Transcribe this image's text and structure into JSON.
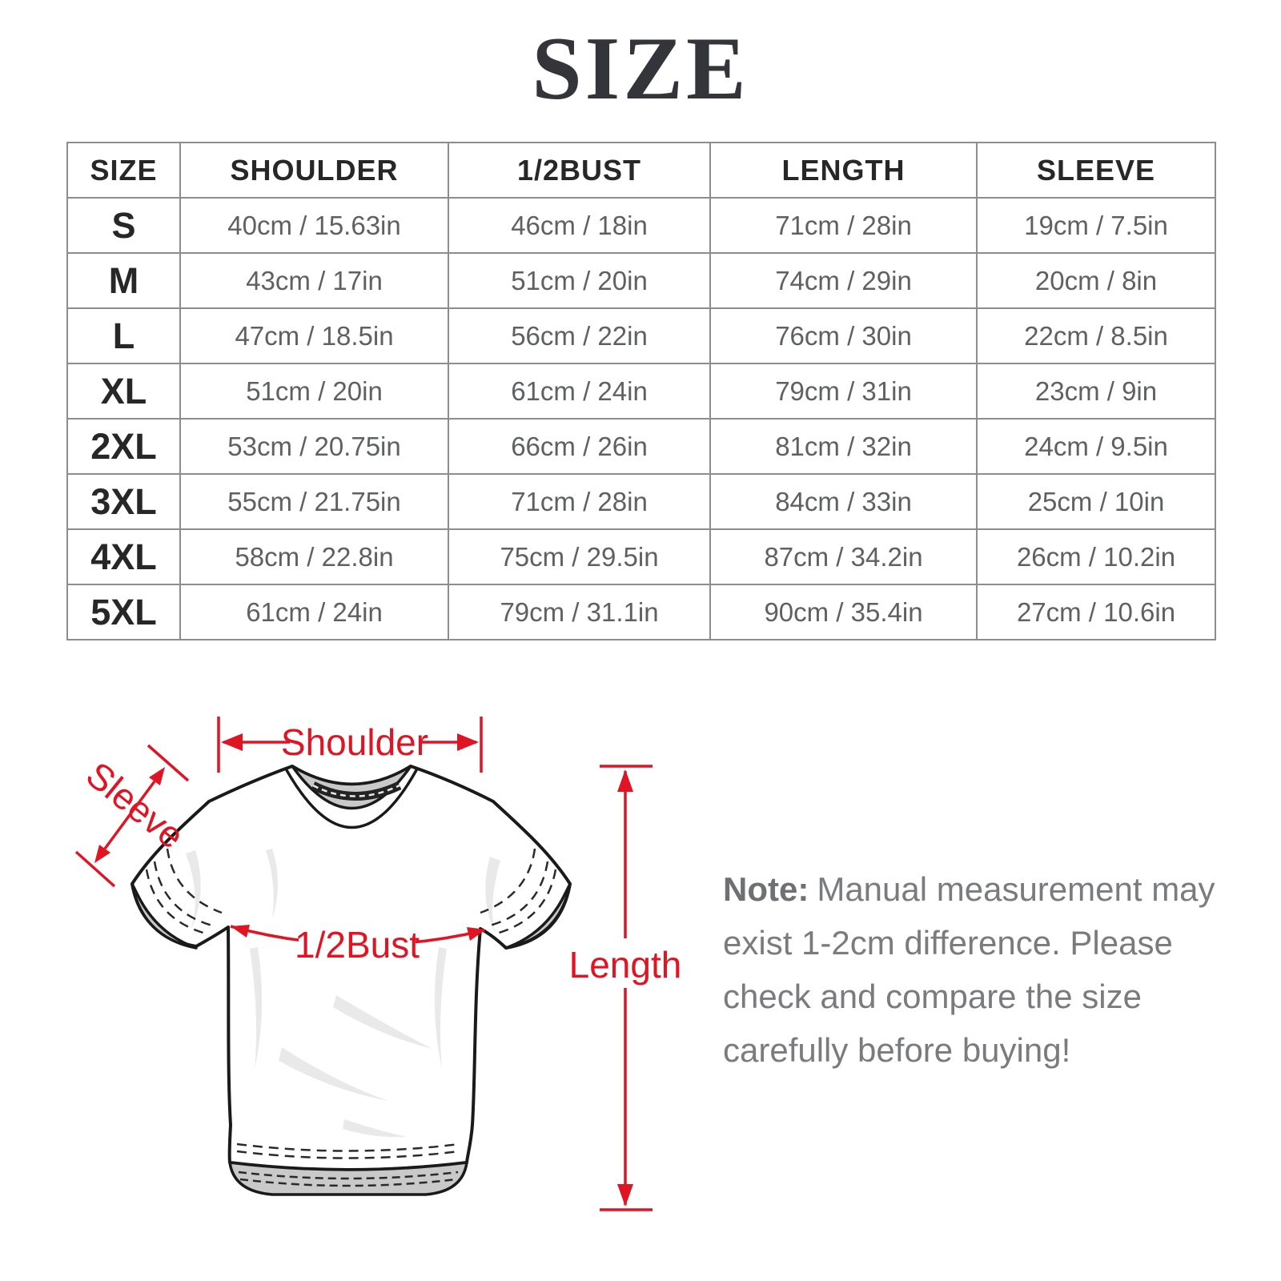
{
  "title": "SIZE",
  "table": {
    "columns": [
      "SIZE",
      "SHOULDER",
      "1/2BUST",
      "LENGTH",
      "SLEEVE"
    ],
    "rows": [
      {
        "size": "S",
        "shoulder": "40cm / 15.63in",
        "bust": "46cm / 18in",
        "length": "71cm / 28in",
        "sleeve": "19cm / 7.5in"
      },
      {
        "size": "M",
        "shoulder": "43cm / 17in",
        "bust": "51cm / 20in",
        "length": "74cm / 29in",
        "sleeve": "20cm / 8in"
      },
      {
        "size": "L",
        "shoulder": "47cm / 18.5in",
        "bust": "56cm / 22in",
        "length": "76cm / 30in",
        "sleeve": "22cm / 8.5in"
      },
      {
        "size": "XL",
        "shoulder": "51cm / 20in",
        "bust": "61cm / 24in",
        "length": "79cm / 31in",
        "sleeve": "23cm / 9in"
      },
      {
        "size": "2XL",
        "shoulder": "53cm / 20.75in",
        "bust": "66cm / 26in",
        "length": "81cm / 32in",
        "sleeve": "24cm / 9.5in"
      },
      {
        "size": "3XL",
        "shoulder": "55cm / 21.75in",
        "bust": "71cm / 28in",
        "length": "84cm / 33in",
        "sleeve": "25cm / 10in"
      },
      {
        "size": "4XL",
        "shoulder": "58cm / 22.8in",
        "bust": "75cm / 29.5in",
        "length": "87cm / 34.2in",
        "sleeve": "26cm / 10.2in"
      },
      {
        "size": "5XL",
        "shoulder": "61cm / 24in",
        "bust": "79cm / 31.1in",
        "length": "90cm / 35.4in",
        "sleeve": "27cm / 10.6in"
      }
    ]
  },
  "diagram": {
    "shoulder_label": "Shoulder",
    "sleeve_label": "Sleeve",
    "bust_label": "1/2Bust",
    "length_label": "Length"
  },
  "note": {
    "label": "Note:",
    "lines": [
      "Manual measurement may",
      "exist 1-2cm difference. Please",
      "check and compare the size",
      "carefully before buying!"
    ]
  },
  "colors": {
    "accent_red": "#e01423",
    "table_border": "#8d8d8d",
    "value_text": "#5f6062",
    "header_text": "#272727",
    "note_text": "#7a7b7e",
    "title_text": "#34353b",
    "collar_gray": "#c9c9c9",
    "wrinkle_gray": "#e9e9e9"
  }
}
